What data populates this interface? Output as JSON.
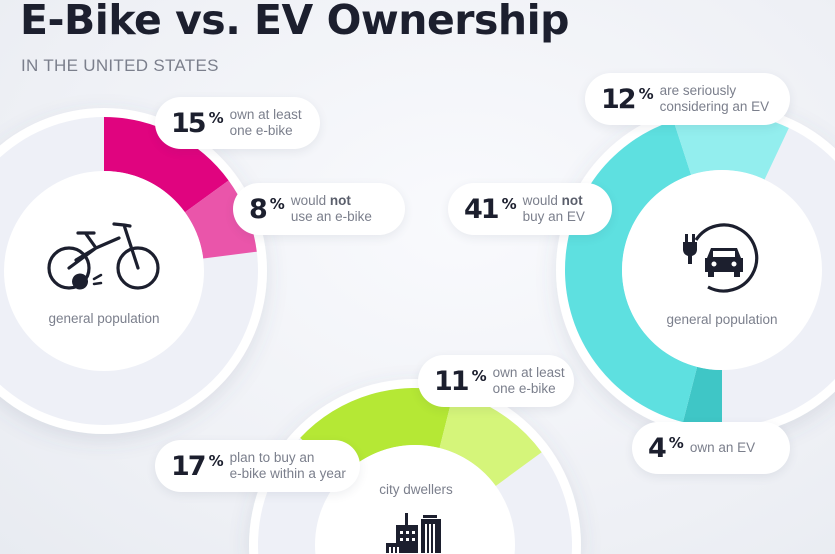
{
  "title": "E-Bike vs. EV Ownership",
  "subtitle": "IN THE UNITED STATES",
  "chart_data": [
    {
      "type": "pie",
      "variant": "donut",
      "center_label": "general population",
      "icon": "electric-bike-icon",
      "slices": [
        {
          "value": 15,
          "label": "own at least one e-bike",
          "color": "#e0047f"
        },
        {
          "value": 8,
          "label": "would not use an e-bike",
          "color": "#ea55aa"
        }
      ],
      "remainder_color": "#eef0f7"
    },
    {
      "type": "pie",
      "variant": "donut",
      "center_label": "general population",
      "icon": "ev-charging-car-icon",
      "slices": [
        {
          "value": 4,
          "label": "own an EV",
          "color": "#3fc6c6"
        },
        {
          "value": 41,
          "label": "would not buy an EV",
          "color": "#5ee0e0"
        },
        {
          "value": 12,
          "label": "are seriously considering an EV",
          "color": "#93eeee"
        }
      ],
      "remainder_color": "#eef0f7"
    },
    {
      "type": "pie",
      "variant": "donut",
      "center_label": "city dwellers",
      "icon": "city-buildings-icon",
      "slices": [
        {
          "value": 17,
          "label": "plan to buy an e-bike within a year",
          "color": "#b5e835"
        },
        {
          "value": 11,
          "label": "own at least one e-bike",
          "color": "#d5f57a"
        }
      ],
      "remainder_color": "#eef0f7"
    }
  ],
  "callouts": [
    {
      "pct": "15",
      "line1": "own at least",
      "line2": "one e-bike"
    },
    {
      "pct": "8",
      "line1_pre": "would ",
      "line1_bold": "not",
      "line2": "use an e-bike"
    },
    {
      "pct": "12",
      "line1": "are seriously",
      "line2": "considering an EV"
    },
    {
      "pct": "41",
      "line1_pre": "would ",
      "line1_bold": "not",
      "line2": "buy an EV"
    },
    {
      "pct": "11",
      "line1": "own at least",
      "line2": "one e-bike"
    },
    {
      "pct": "17",
      "line1": "plan to buy an",
      "line2": "e-bike within a year"
    },
    {
      "pct": "4",
      "line1": "own an EV"
    }
  ],
  "percent_symbol": "%"
}
